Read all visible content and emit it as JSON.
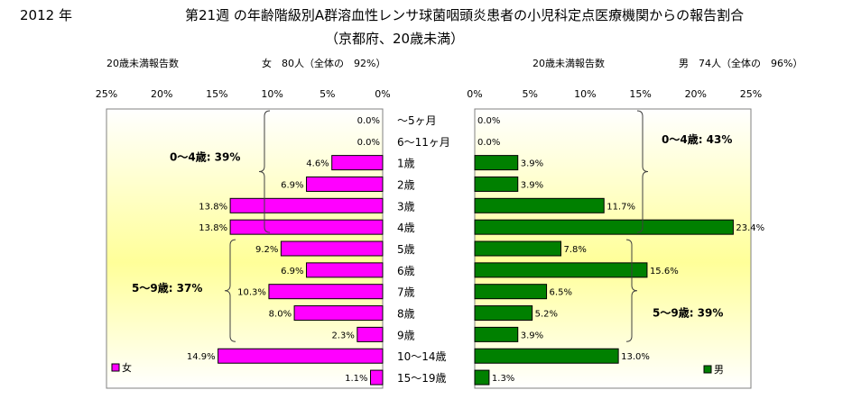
{
  "header": {
    "year": "2012 年",
    "title": "第21週 の年齢階級別A群溶血性レンサ球菌咽頭炎患者の小児科定点医療機関からの報告割合",
    "subtitle": "（京都府、20歳未満）"
  },
  "chart_data": {
    "type": "bar",
    "categories": [
      "～5ヶ月",
      "6～11ヶ月",
      "1歳",
      "2歳",
      "3歳",
      "4歳",
      "5歳",
      "6歳",
      "7歳",
      "8歳",
      "9歳",
      "10～14歳",
      "15～19歳"
    ],
    "panels": [
      {
        "side": "left",
        "header_left": "20歳未満報告数",
        "header_right": "女　80人（全体の　92%）",
        "series_name": "女",
        "color": "#ff00ff",
        "values": [
          0.0,
          0.0,
          4.6,
          6.9,
          13.8,
          13.8,
          9.2,
          6.9,
          10.3,
          8.0,
          2.3,
          14.9,
          1.1
        ],
        "labels": [
          "0.0%",
          "0.0%",
          "4.6%",
          "6.9%",
          "13.8%",
          "13.8%",
          "9.2%",
          "6.9%",
          "10.3%",
          "8.0%",
          "2.3%",
          "14.9%",
          "1.1%"
        ],
        "xlim": [
          0,
          25
        ],
        "ticks": [
          "25%",
          "20%",
          "15%",
          "10%",
          "5%",
          "0%"
        ],
        "annotations": [
          "0～4歳: 39%",
          "5～9歳: 37%"
        ]
      },
      {
        "side": "right",
        "header_left": "20歳未満報告数",
        "header_right": "男　74人（全体の　96%）",
        "series_name": "男",
        "color": "#008000",
        "values": [
          0.0,
          0.0,
          3.9,
          3.9,
          11.7,
          23.4,
          7.8,
          15.6,
          6.5,
          5.2,
          3.9,
          13.0,
          1.3
        ],
        "labels": [
          "0.0%",
          "0.0%",
          "3.9%",
          "3.9%",
          "11.7%",
          "23.4%",
          "7.8%",
          "15.6%",
          "6.5%",
          "5.2%",
          "3.9%",
          "13.0%",
          "1.3%"
        ],
        "xlim": [
          0,
          25
        ],
        "ticks": [
          "0%",
          "5%",
          "10%",
          "15%",
          "20%",
          "25%"
        ],
        "annotations": [
          "0～4歳: 43%",
          "5～9歳: 39%"
        ]
      }
    ]
  }
}
